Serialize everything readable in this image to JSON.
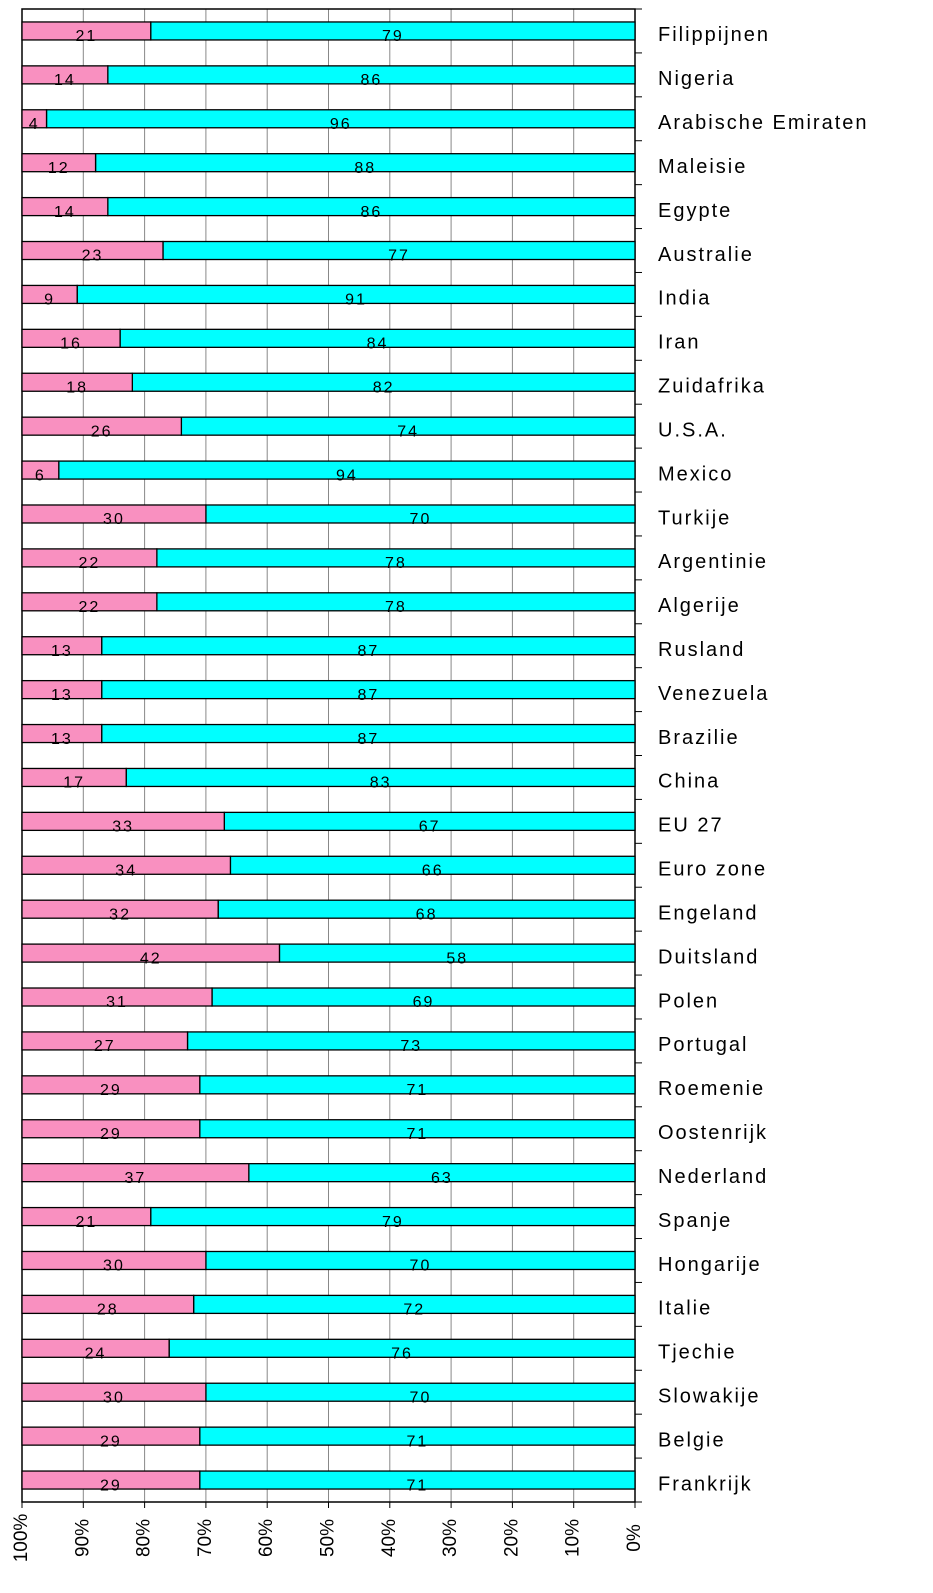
{
  "chart_data": {
    "type": "stacked_barh",
    "categories": [
      "Filippijnen",
      "Nigeria",
      "Arabische Emiraten",
      "Maleisie",
      "Egypte",
      "Australie",
      "India",
      "Iran",
      "Zuidafrika",
      "U.S.A.",
      "Mexico",
      "Turkije",
      "Argentinie",
      "Algerije",
      "Rusland",
      "Venezuela",
      "Brazilie",
      "China",
      "EU 27",
      "Euro zone",
      "Engeland",
      "Duitsland",
      "Polen",
      "Portugal",
      "Roemenie",
      "Oostenrijk",
      "Nederland",
      "Spanje",
      "Hongarije",
      "Italie",
      "Tjechie",
      "Slowakije",
      "Belgie",
      "Frankrijk"
    ],
    "series": [
      {
        "color": "#00ffff",
        "values": [
          79,
          86,
          96,
          88,
          86,
          77,
          91,
          84,
          82,
          74,
          94,
          70,
          78,
          78,
          87,
          87,
          87,
          83,
          67,
          66,
          68,
          58,
          69,
          73,
          71,
          71,
          63,
          79,
          70,
          72,
          76,
          70,
          71,
          71
        ]
      },
      {
        "color": "#f990c0",
        "values": [
          21,
          14,
          4,
          12,
          14,
          23,
          9,
          16,
          18,
          26,
          6,
          30,
          22,
          22,
          13,
          13,
          13,
          17,
          33,
          34,
          32,
          42,
          31,
          27,
          29,
          29,
          37,
          21,
          30,
          28,
          24,
          30,
          29,
          29
        ]
      }
    ],
    "xlim": [
      100,
      0
    ],
    "xticks": [
      {
        "value": 100,
        "label": "100%"
      },
      {
        "value": 90,
        "label": "90%"
      },
      {
        "value": 80,
        "label": "80%"
      },
      {
        "value": 70,
        "label": "70%"
      },
      {
        "value": 60,
        "label": "60%"
      },
      {
        "value": 50,
        "label": "50%"
      },
      {
        "value": 40,
        "label": "40%"
      },
      {
        "value": 30,
        "label": "30%"
      },
      {
        "value": 20,
        "label": "20%"
      },
      {
        "value": 10,
        "label": "10%"
      },
      {
        "value": 0,
        "label": "0%"
      }
    ],
    "grid": true
  }
}
